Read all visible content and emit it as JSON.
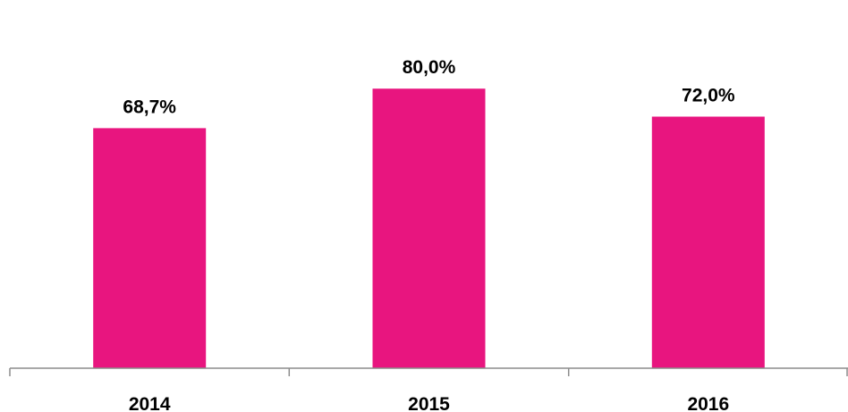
{
  "chart_data": {
    "type": "bar",
    "categories": [
      "2014",
      "2015",
      "2016"
    ],
    "values": [
      68.7,
      80.0,
      72.0
    ],
    "data_labels": [
      "68,7%",
      "80,0%",
      "72,0%"
    ],
    "title": "",
    "xlabel": "",
    "ylabel": "",
    "ylim": [
      0,
      100
    ],
    "grid": false,
    "legend": "none",
    "colors": {
      "bar": "#E8157F",
      "axis": "#8C8C8C",
      "text": "#000000"
    }
  }
}
